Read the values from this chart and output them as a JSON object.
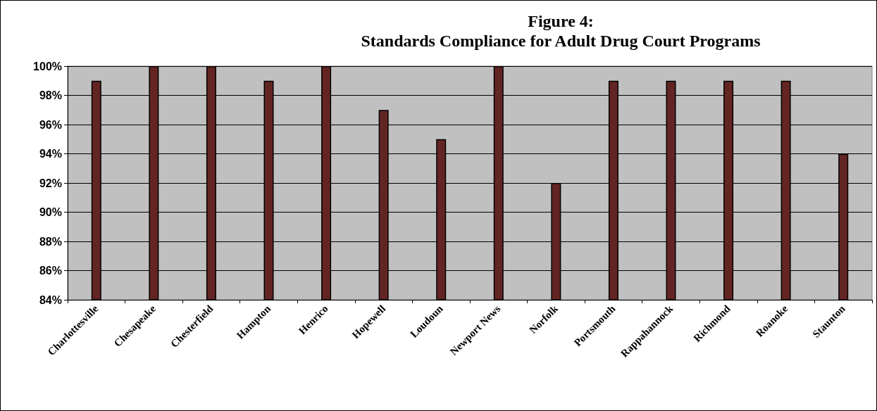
{
  "chart_data": {
    "type": "bar",
    "title": "Figure 4:",
    "subtitle": "Standards Compliance for Adult Drug Court Programs",
    "categories": [
      "Charlottesville",
      "Chesapeake",
      "Chesterfield",
      "Hampton",
      "Henrico",
      "Hopewell",
      "Loudoun",
      "Newport News",
      "Norfolk",
      "Portsmouth",
      "Rappahannock",
      "Richmond",
      "Roanoke",
      "Staunton"
    ],
    "values": [
      99,
      100,
      100,
      99,
      100,
      97,
      95,
      100,
      92,
      99,
      99,
      99,
      99,
      94
    ],
    "color": "#632523",
    "ylim": [
      84,
      100
    ],
    "yticks": [
      {
        "value": 84,
        "label": "84%"
      },
      {
        "value": 86,
        "label": "86%"
      },
      {
        "value": 88,
        "label": "88%"
      },
      {
        "value": 90,
        "label": "90%"
      },
      {
        "value": 92,
        "label": "92%"
      },
      {
        "value": 94,
        "label": "94%"
      },
      {
        "value": 96,
        "label": "96%"
      },
      {
        "value": 98,
        "label": "98%"
      },
      {
        "value": 100,
        "label": "100%"
      }
    ],
    "grid": "y"
  }
}
